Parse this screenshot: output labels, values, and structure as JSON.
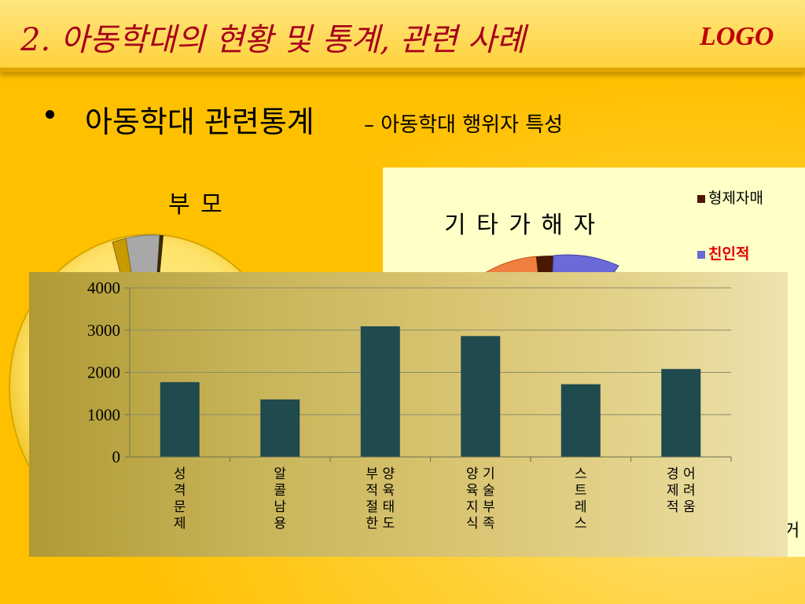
{
  "slide": {
    "title": "2. 아동학대의 현황 및 통계, 관련 사례",
    "logo": "LOGO",
    "bullet_main": "아동학대 관련통계",
    "bullet_sub": "– 아동학대 행위자 특성"
  },
  "colors": {
    "background": "#FFC000",
    "title_text": "#A8001B",
    "logo_text": "#C00000",
    "bar_fill": "#1F4A4E",
    "legend_red": "#E00000"
  },
  "parent_pie": {
    "title": "부 모"
  },
  "other_pie": {
    "title": "기 타 가 해 자",
    "legend": [
      {
        "label": "형제자매",
        "color": "#4A1800"
      },
      {
        "label": "친인적",
        "color": "#6A6AD8"
      }
    ],
    "partial_labels": [
      "자",
      "거"
    ]
  },
  "chart_data": {
    "type": "bar",
    "title": "",
    "categories": [
      [
        "성",
        "격",
        "문",
        "제"
      ],
      [
        "알",
        "콜",
        "남",
        "용"
      ],
      [
        "부 양",
        "적 육",
        "절 태",
        "한 도"
      ],
      [
        "양 기",
        "육 술",
        "지 부",
        "식 족"
      ],
      [
        "스",
        "트",
        "레",
        "스"
      ],
      [
        "경 어",
        "제 려",
        "적 움"
      ]
    ],
    "values": [
      1770,
      1360,
      3090,
      2860,
      1720,
      2080
    ],
    "ylim": [
      0,
      4000
    ],
    "yticks": [
      "0",
      "1000",
      "2000",
      "3000",
      "4000"
    ],
    "grid": true,
    "bar_color": "#1F4A4E"
  }
}
